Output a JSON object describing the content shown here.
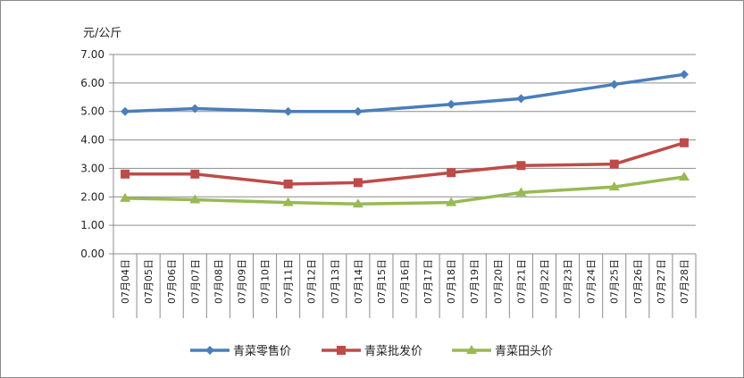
{
  "chart_data": {
    "type": "line",
    "title": "",
    "ylabel": "元/公斤",
    "xlabel": "",
    "ylim": [
      0,
      7
    ],
    "y_ticks": [
      "0.00",
      "1.00",
      "2.00",
      "3.00",
      "4.00",
      "5.00",
      "6.00",
      "7.00"
    ],
    "grid": "horizontal",
    "legend_position": "bottom",
    "categories": [
      "07月04日",
      "07月05日",
      "07月06日",
      "07月07日",
      "07月08日",
      "07月09日",
      "07月10日",
      "07月11日",
      "07月12日",
      "07月13日",
      "07月14日",
      "07月15日",
      "07月16日",
      "07月17日",
      "07月18日",
      "07月19日",
      "07月20日",
      "07月21日",
      "07月22日",
      "07月23日",
      "07月24日",
      "07月25日",
      "07月26日",
      "07月27日",
      "07月28日"
    ],
    "series": [
      {
        "name": "青菜零售价",
        "color": "#4A7EBB",
        "marker": "diamond",
        "points": [
          [
            "07月04日",
            5.0
          ],
          [
            "07月07日",
            5.1
          ],
          [
            "07月11日",
            5.0
          ],
          [
            "07月14日",
            5.0
          ],
          [
            "07月18日",
            5.25
          ],
          [
            "07月21日",
            5.45
          ],
          [
            "07月25日",
            5.95
          ],
          [
            "07月28日",
            6.3
          ]
        ]
      },
      {
        "name": "青菜批发价",
        "color": "#BE4B48",
        "marker": "square",
        "points": [
          [
            "07月04日",
            2.8
          ],
          [
            "07月07日",
            2.8
          ],
          [
            "07月11日",
            2.45
          ],
          [
            "07月14日",
            2.5
          ],
          [
            "07月18日",
            2.85
          ],
          [
            "07月21日",
            3.1
          ],
          [
            "07月25日",
            3.15
          ],
          [
            "07月28日",
            3.9
          ]
        ]
      },
      {
        "name": "青菜田头价",
        "color": "#98B954",
        "marker": "triangle",
        "points": [
          [
            "07月04日",
            1.95
          ],
          [
            "07月07日",
            1.9
          ],
          [
            "07月11日",
            1.8
          ],
          [
            "07月14日",
            1.75
          ],
          [
            "07月18日",
            1.8
          ],
          [
            "07月21日",
            2.15
          ],
          [
            "07月25日",
            2.35
          ],
          [
            "07月28日",
            2.7
          ]
        ]
      }
    ]
  }
}
